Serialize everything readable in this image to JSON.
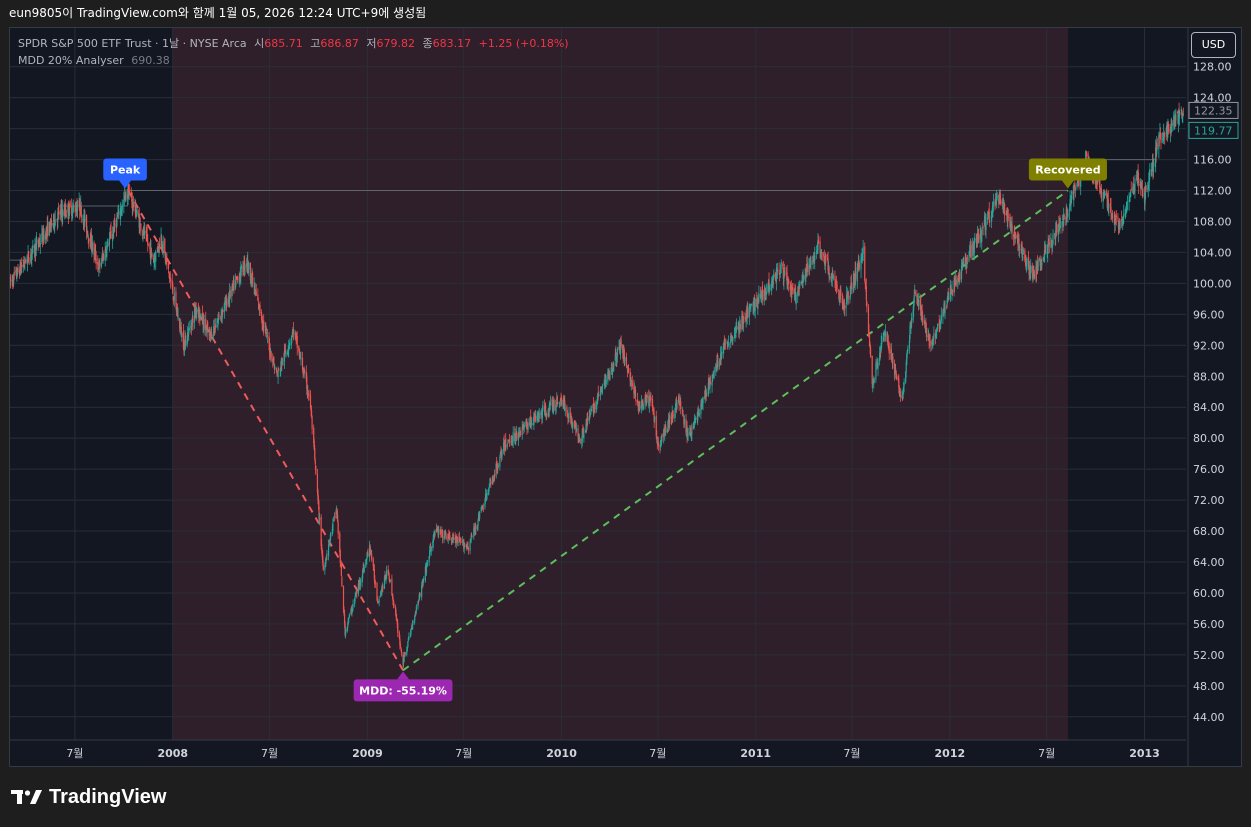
{
  "header": {
    "caption": "eun9805이 TradingView.com와 함께 1월 05, 2026 12:24 UTC+9에 생성됨"
  },
  "legend": {
    "symbol": "SPDR S&P 500 ETF Trust · 1날 · NYSE Arca",
    "open_label": "시",
    "open_value": "685.71",
    "high_label": "고",
    "high_value": "686.87",
    "low_label": "저",
    "low_value": "679.82",
    "close_label": "종",
    "close_value": "683.17",
    "change": "+1.25 (+0.18%)",
    "indicator_name": "MDD 20% Analyser",
    "indicator_value": "690.38"
  },
  "toolbar": {
    "currency_label": "USD"
  },
  "brand": {
    "name": "TradingView"
  },
  "colors": {
    "background": "#131722",
    "up_candle": "#26a69a",
    "down_candle": "#ef5350",
    "drawdown_zone": "#2e1f2a",
    "peak_badge": "#2962ff",
    "mdd_badge": "#9c27b0",
    "recovered_badge": "#808000",
    "drawdown_line": "#f05a5a",
    "recovery_line": "#5cbf5c"
  },
  "chart_data": {
    "type": "candlestick",
    "x_ticks": [
      "7월",
      "2008",
      "7월",
      "2009",
      "7월",
      "2010",
      "7월",
      "2011",
      "7월",
      "2012",
      "7월",
      "2013"
    ],
    "y_ticks": [
      44,
      48,
      52,
      56,
      60,
      64,
      68,
      72,
      76,
      80,
      84,
      88,
      92,
      96,
      100,
      104,
      108,
      112,
      116,
      120,
      124,
      128
    ],
    "y_tick_labels": [
      "44.00",
      "48.00",
      "52.00",
      "56.00",
      "60.00",
      "64.00",
      "68.00",
      "72.00",
      "76.00",
      "80.00",
      "84.00",
      "88.00",
      "92.00",
      "96.00",
      "100.00",
      "104.00",
      "108.00",
      "112.00",
      "116.00",
      "120.00",
      "124.00",
      "128.00"
    ],
    "ylim": [
      41,
      133
    ],
    "xlim": [
      "2007-03-01",
      "2013-03-20"
    ],
    "price_key_points": [
      {
        "date": "2007-03-01",
        "value": 100
      },
      {
        "date": "2007-04-01",
        "value": 103
      },
      {
        "date": "2007-06-01",
        "value": 109
      },
      {
        "date": "2007-07-10",
        "value": 110
      },
      {
        "date": "2007-08-15",
        "value": 102
      },
      {
        "date": "2007-10-09",
        "value": 112
      },
      {
        "date": "2007-11-26",
        "value": 103
      },
      {
        "date": "2007-12-10",
        "value": 106
      },
      {
        "date": "2008-01-22",
        "value": 92
      },
      {
        "date": "2008-02-15",
        "value": 97
      },
      {
        "date": "2008-03-10",
        "value": 93
      },
      {
        "date": "2008-05-19",
        "value": 103
      },
      {
        "date": "2008-07-15",
        "value": 88
      },
      {
        "date": "2008-08-15",
        "value": 94
      },
      {
        "date": "2008-09-15",
        "value": 85
      },
      {
        "date": "2008-10-10",
        "value": 63
      },
      {
        "date": "2008-11-04",
        "value": 71
      },
      {
        "date": "2008-11-20",
        "value": 55
      },
      {
        "date": "2009-01-06",
        "value": 66
      },
      {
        "date": "2009-01-20",
        "value": 59
      },
      {
        "date": "2009-02-09",
        "value": 63
      },
      {
        "date": "2009-03-09",
        "value": 51
      },
      {
        "date": "2009-05-08",
        "value": 68
      },
      {
        "date": "2009-07-10",
        "value": 66
      },
      {
        "date": "2009-09-15",
        "value": 79
      },
      {
        "date": "2009-11-01",
        "value": 82
      },
      {
        "date": "2009-12-31",
        "value": 85
      },
      {
        "date": "2010-02-05",
        "value": 80
      },
      {
        "date": "2010-04-23",
        "value": 92
      },
      {
        "date": "2010-05-25",
        "value": 84
      },
      {
        "date": "2010-06-18",
        "value": 85
      },
      {
        "date": "2010-07-02",
        "value": 79
      },
      {
        "date": "2010-08-09",
        "value": 85
      },
      {
        "date": "2010-08-27",
        "value": 80
      },
      {
        "date": "2010-11-04",
        "value": 92
      },
      {
        "date": "2011-02-18",
        "value": 102
      },
      {
        "date": "2011-03-16",
        "value": 98
      },
      {
        "date": "2011-04-29",
        "value": 105
      },
      {
        "date": "2011-06-16",
        "value": 97
      },
      {
        "date": "2011-07-22",
        "value": 104
      },
      {
        "date": "2011-08-08",
        "value": 87
      },
      {
        "date": "2011-08-31",
        "value": 94
      },
      {
        "date": "2011-10-03",
        "value": 85
      },
      {
        "date": "2011-10-27",
        "value": 99
      },
      {
        "date": "2011-11-25",
        "value": 92
      },
      {
        "date": "2012-01-03",
        "value": 99
      },
      {
        "date": "2012-04-02",
        "value": 111
      },
      {
        "date": "2012-06-04",
        "value": 101
      },
      {
        "date": "2012-07-31",
        "value": 108
      },
      {
        "date": "2012-09-14",
        "value": 116
      },
      {
        "date": "2012-11-15",
        "value": 107
      },
      {
        "date": "2012-12-18",
        "value": 114
      },
      {
        "date": "2012-12-31",
        "value": 111
      },
      {
        "date": "2013-01-30",
        "value": 119
      },
      {
        "date": "2013-03-15",
        "value": 122
      }
    ],
    "drawdown_zone": {
      "start": "2008-01-01",
      "end": "2012-08-10"
    },
    "peak": {
      "date": "2007-10-09",
      "value": 112,
      "label": "Peak"
    },
    "trough": {
      "date": "2009-03-09",
      "value": 50,
      "label": "MDD: -55.19%"
    },
    "recovered": {
      "date": "2012-08-10",
      "value": 112,
      "label": "Recovered"
    },
    "reference_lines": [
      {
        "value": 112,
        "from": "2007-10-09",
        "to": "2012-08-10"
      },
      {
        "value": 116,
        "from": "2012-09-14",
        "to": "2013-01-20"
      },
      {
        "value": 110,
        "from": "2007-06-01",
        "to": "2007-10-09"
      },
      {
        "value": 103,
        "from": "2007-03-01",
        "to": "2007-04-01"
      }
    ],
    "price_markers": [
      {
        "value": 122.35,
        "label": "122.35",
        "color": "#131722"
      },
      {
        "value": 119.77,
        "label": "119.77",
        "color": "#131722"
      }
    ]
  }
}
